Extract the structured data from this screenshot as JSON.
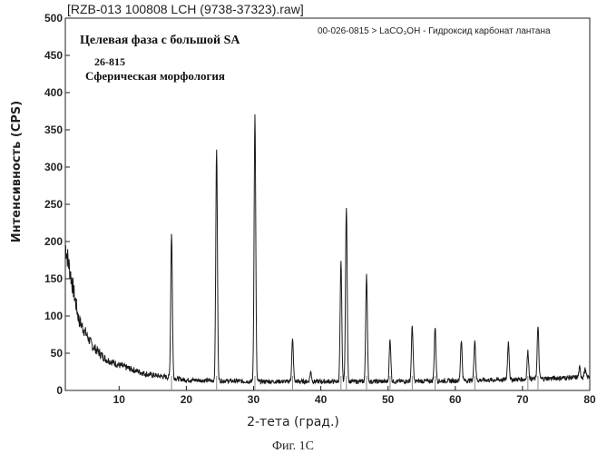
{
  "chart_data": {
    "type": "line",
    "title": "[RZB-013 100808 LCH (9738-37323).raw]",
    "xlabel": "2-тета (град.)",
    "ylabel": "Интенсивность (CPS)",
    "xlim": [
      2,
      80
    ],
    "ylim": [
      0,
      500
    ],
    "x_ticks": [
      10,
      20,
      30,
      40,
      50,
      60,
      70,
      80
    ],
    "y_ticks": [
      0,
      50,
      100,
      150,
      200,
      250,
      300,
      350,
      400,
      450,
      500
    ],
    "grid": false,
    "annotations": {
      "reference": "00-026-0815 > LaCO₃OH - Гидроксид карбонат лантана",
      "phase": "Целевая фаза с большой SA",
      "card": "26-815",
      "morphology": "Сферическая морфология"
    },
    "baseline": {
      "x": [
        2.0,
        4.0,
        6.0,
        8.0,
        10.0,
        14.0,
        20.0,
        30.0,
        40.0,
        50.0,
        60.0,
        70.0,
        80.0
      ],
      "y": [
        195,
        95,
        60,
        42,
        34,
        22,
        14,
        12,
        12,
        12,
        13,
        15,
        18
      ]
    },
    "peaks": [
      {
        "x": 17.8,
        "y": 212
      },
      {
        "x": 24.5,
        "y": 325
      },
      {
        "x": 30.2,
        "y": 370
      },
      {
        "x": 35.8,
        "y": 68
      },
      {
        "x": 38.5,
        "y": 25
      },
      {
        "x": 43.0,
        "y": 172
      },
      {
        "x": 43.8,
        "y": 247
      },
      {
        "x": 46.8,
        "y": 157
      },
      {
        "x": 50.3,
        "y": 68
      },
      {
        "x": 53.6,
        "y": 87
      },
      {
        "x": 57.0,
        "y": 85
      },
      {
        "x": 60.9,
        "y": 68
      },
      {
        "x": 62.9,
        "y": 68
      },
      {
        "x": 67.9,
        "y": 65
      },
      {
        "x": 70.8,
        "y": 52
      },
      {
        "x": 72.3,
        "y": 85
      },
      {
        "x": 78.5,
        "y": 30
      },
      {
        "x": 79.3,
        "y": 28
      }
    ],
    "reference_sticks": {
      "x": [
        17.8,
        24.5,
        30.2,
        35.8,
        43.0,
        43.8,
        46.8,
        50.3,
        53.6,
        57.0,
        62.9,
        70.8,
        72.3
      ]
    }
  },
  "figure_caption": "Фиг. 1С",
  "colors": {
    "trace": "#1a1a1a",
    "axis": "#222222",
    "background": "#ffffff"
  }
}
